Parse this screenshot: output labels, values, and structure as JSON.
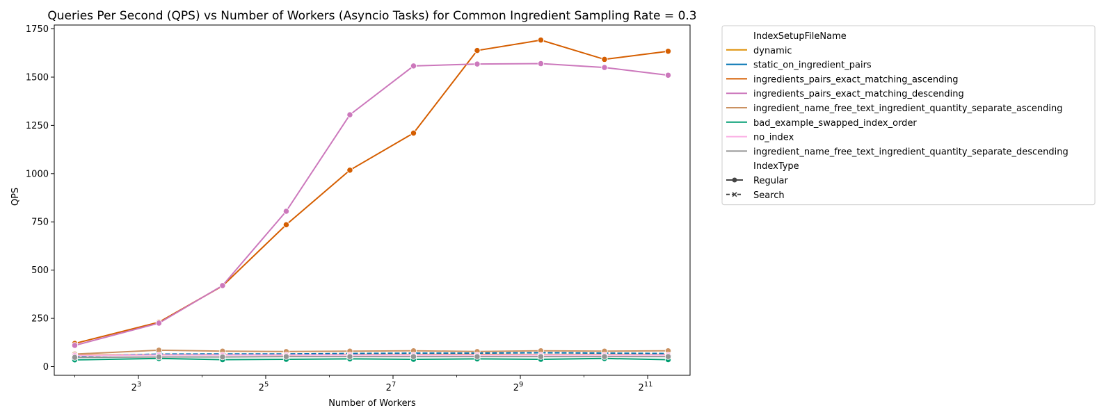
{
  "chart_data": {
    "type": "line",
    "title": "Queries Per Second (QPS) vs Number of Workers (Asyncio Tasks) for Common Ingredient Sampling Rate = 0.3",
    "xlabel": "Number of Workers",
    "ylabel": "QPS",
    "x_scale": "log2",
    "xlim": [
      3.2,
      3250
    ],
    "ylim": [
      -45,
      1770
    ],
    "x_ticks": [
      {
        "value": 8,
        "base": "2",
        "exp": "3"
      },
      {
        "value": 32,
        "base": "2",
        "exp": "5"
      },
      {
        "value": 128,
        "base": "2",
        "exp": "7"
      },
      {
        "value": 512,
        "base": "2",
        "exp": "9"
      },
      {
        "value": 2048,
        "base": "2",
        "exp": "11"
      }
    ],
    "y_ticks": [
      0,
      250,
      500,
      750,
      1000,
      1250,
      1500,
      1750
    ],
    "x": [
      4,
      10,
      20,
      40,
      80,
      160,
      320,
      640,
      1280,
      2560
    ],
    "grid": false,
    "legend": {
      "placement": "outside-right",
      "hue_title": "IndexSetupFileName",
      "style_title": "IndexType",
      "styles": [
        {
          "name": "Regular",
          "dash": "solid",
          "marker": "circle"
        },
        {
          "name": "Search",
          "dash": "dashed",
          "marker": "x"
        }
      ]
    },
    "series": [
      {
        "name": "dynamic",
        "color": "#de8f05",
        "style": "Regular",
        "values": [
          60,
          62,
          62,
          60,
          62,
          62,
          63,
          62,
          62,
          62
        ]
      },
      {
        "name": "static_on_ingredient_pairs",
        "color": "#0173b2",
        "style": "Search",
        "values": [
          55,
          65,
          66,
          66,
          68,
          70,
          70,
          72,
          70,
          68
        ]
      },
      {
        "name": "ingredients_pairs_exact_matching_ascending",
        "color": "#d55e00",
        "style": "Regular",
        "values": [
          120,
          230,
          418,
          735,
          1018,
          1210,
          1638,
          1692,
          1592,
          1634
        ]
      },
      {
        "name": "ingredients_pairs_exact_matching_descending",
        "color": "#cc78bc",
        "style": "Regular",
        "values": [
          110,
          225,
          420,
          805,
          1305,
          1558,
          1568,
          1570,
          1550,
          1510
        ]
      },
      {
        "name": "ingredient_name_free_text_ingredient_quantity_separate_ascending",
        "color": "#ca9161",
        "style": "Regular",
        "values": [
          65,
          85,
          80,
          78,
          80,
          82,
          78,
          82,
          80,
          82
        ]
      },
      {
        "name": "bad_example_swapped_index_order",
        "color": "#029e73",
        "style": "Regular",
        "values": [
          35,
          42,
          36,
          38,
          40,
          38,
          40,
          38,
          42,
          36
        ]
      },
      {
        "name": "no_index",
        "color": "#fbafe4",
        "style": "Regular",
        "values": [
          58,
          60,
          60,
          60,
          60,
          60,
          60,
          60,
          60,
          60
        ]
      },
      {
        "name": "ingredient_name_free_text_ingredient_quantity_separate_descending",
        "color": "#949494",
        "style": "Regular",
        "values": [
          48,
          50,
          50,
          52,
          52,
          52,
          52,
          52,
          52,
          52
        ]
      }
    ]
  }
}
